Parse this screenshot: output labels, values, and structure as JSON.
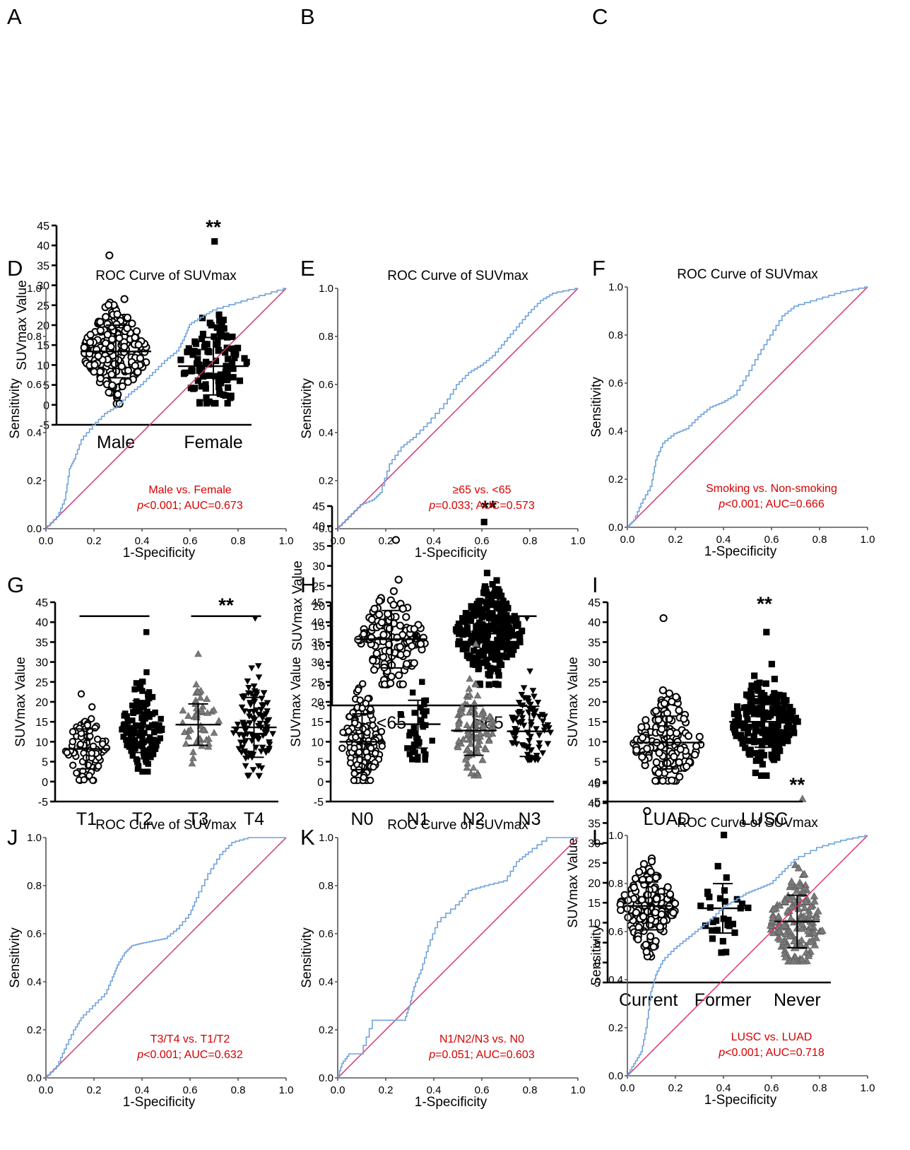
{
  "colors": {
    "roc_curve": "#6fa3dc",
    "reference_line": "#d6336c",
    "annotation": "#d50000",
    "open_points": "#000000",
    "square_points": "#000000",
    "triangle_points": "#7a7a7a"
  },
  "chart_data": [
    {
      "panel": "A",
      "type": "scatter",
      "ylabel": "SUVmax Value",
      "ylim": [
        -5,
        45
      ],
      "yticks": [
        "45",
        "40",
        "35",
        "30",
        "25",
        "20",
        "15",
        "10",
        "5",
        "0",
        "-5"
      ],
      "groups": [
        {
          "name": "Male",
          "marker": "circle-open",
          "mean": 13.4,
          "sd": 6.6,
          "n": 200,
          "min": 0.3,
          "max": 37.5
        },
        {
          "name": "Female",
          "marker": "square",
          "mean": 9.7,
          "sd": 7.2,
          "n": 110,
          "min": 0.4,
          "max": 41
        }
      ],
      "significance": [
        {
          "label": "**",
          "group": 1
        }
      ]
    },
    {
      "panel": "B",
      "type": "scatter",
      "ylabel": "SUVmax Value",
      "ylim": [
        -5,
        45
      ],
      "yticks": [
        "45",
        "40",
        "35",
        "30",
        "25",
        "20",
        "15",
        "10",
        "5",
        "0",
        "-5"
      ],
      "groups": [
        {
          "name": "<65",
          "marker": "circle-open",
          "mean": 11.6,
          "sd": 7.2,
          "n": 130,
          "min": 0.3,
          "max": 36.5
        },
        {
          "name": "≥65",
          "marker": "square",
          "mean": 13.0,
          "sd": 6.6,
          "n": 240,
          "min": 0.2,
          "max": 41
        }
      ],
      "significance": [
        {
          "label": "**",
          "group": 1
        }
      ]
    },
    {
      "panel": "C",
      "type": "scatter",
      "ylabel": "SUVmax Value",
      "ylim": [
        -5,
        45
      ],
      "yticks": [
        "45",
        "40",
        "35",
        "30",
        "25",
        "20",
        "15",
        "10",
        "5",
        "0",
        "-5"
      ],
      "groups": [
        {
          "name": "Current",
          "marker": "circle-open",
          "mean": 14.2,
          "sd": 6.0,
          "n": 170,
          "min": 1.5,
          "max": 38
        },
        {
          "name": "Former",
          "marker": "square",
          "mean": 13.6,
          "sd": 6.2,
          "n": 30,
          "min": 2.5,
          "max": 32
        },
        {
          "name": "Never",
          "marker": "triangle",
          "mean": 10.3,
          "sd": 6.6,
          "n": 150,
          "min": 0.3,
          "max": 41
        }
      ],
      "significance": [
        {
          "label": "**",
          "group": 2
        }
      ]
    },
    {
      "panel": "D",
      "type": "line",
      "title": "ROC Curve of SUVmax",
      "xlabel": "1-Specificity",
      "ylabel": "Sensitivity",
      "xlim": [
        0,
        1
      ],
      "ylim": [
        0,
        1
      ],
      "xticks": [
        "0.0",
        "0.2",
        "0.4",
        "0.6",
        "0.8",
        "1.0"
      ],
      "yticks": [
        "0.0",
        "0.2",
        "0.4",
        "0.6",
        "0.8",
        "1.0"
      ],
      "curve": [
        [
          0,
          0
        ],
        [
          0.05,
          0.05
        ],
        [
          0.08,
          0.12
        ],
        [
          0.1,
          0.25
        ],
        [
          0.12,
          0.29
        ],
        [
          0.15,
          0.37
        ],
        [
          0.2,
          0.43
        ],
        [
          0.25,
          0.48
        ],
        [
          0.3,
          0.51
        ],
        [
          0.35,
          0.56
        ],
        [
          0.4,
          0.6
        ],
        [
          0.45,
          0.65
        ],
        [
          0.5,
          0.7
        ],
        [
          0.55,
          0.74
        ],
        [
          0.58,
          0.8
        ],
        [
          0.6,
          0.85
        ],
        [
          0.65,
          0.88
        ],
        [
          0.7,
          0.91
        ],
        [
          0.8,
          0.94
        ],
        [
          0.9,
          0.97
        ],
        [
          1,
          1
        ]
      ],
      "reference": [
        [
          0,
          0
        ],
        [
          1,
          1
        ]
      ],
      "annotation": [
        "Male vs. Female",
        "p<0.001; AUC=0.673"
      ]
    },
    {
      "panel": "E",
      "type": "line",
      "title": "ROC Curve of SUVmax",
      "xlabel": "1-Specificity",
      "ylabel": "Sensitivity",
      "xlim": [
        0,
        1
      ],
      "ylim": [
        0,
        1
      ],
      "xticks": [
        "0.0",
        "0.2",
        "0.4",
        "0.6",
        "0.8",
        "1.0"
      ],
      "yticks": [
        "0.0",
        "0.2",
        "0.4",
        "0.6",
        "0.8",
        "1.0"
      ],
      "curve": [
        [
          0,
          0
        ],
        [
          0.05,
          0.05
        ],
        [
          0.1,
          0.1
        ],
        [
          0.15,
          0.12
        ],
        [
          0.18,
          0.15
        ],
        [
          0.22,
          0.27
        ],
        [
          0.27,
          0.34
        ],
        [
          0.32,
          0.38
        ],
        [
          0.38,
          0.44
        ],
        [
          0.45,
          0.52
        ],
        [
          0.5,
          0.6
        ],
        [
          0.55,
          0.65
        ],
        [
          0.6,
          0.68
        ],
        [
          0.65,
          0.72
        ],
        [
          0.7,
          0.78
        ],
        [
          0.75,
          0.84
        ],
        [
          0.8,
          0.9
        ],
        [
          0.85,
          0.95
        ],
        [
          0.9,
          0.98
        ],
        [
          1,
          1
        ]
      ],
      "reference": [
        [
          0,
          0
        ],
        [
          1,
          1
        ]
      ],
      "annotation": [
        "≥65 vs. <65",
        "p=0.033; AUC=0.573"
      ]
    },
    {
      "panel": "F",
      "type": "line",
      "title": "ROC Curve of SUVmax",
      "xlabel": "1-Specificity",
      "ylabel": "Sensitivity",
      "xlim": [
        0,
        1
      ],
      "ylim": [
        0,
        1
      ],
      "xticks": [
        "0.0",
        "0.2",
        "0.4",
        "0.6",
        "0.8",
        "1.0"
      ],
      "yticks": [
        "0.0",
        "0.2",
        "0.4",
        "0.6",
        "0.8",
        "1.0"
      ],
      "curve": [
        [
          0,
          0
        ],
        [
          0.03,
          0.03
        ],
        [
          0.06,
          0.1
        ],
        [
          0.1,
          0.17
        ],
        [
          0.12,
          0.28
        ],
        [
          0.15,
          0.35
        ],
        [
          0.2,
          0.39
        ],
        [
          0.25,
          0.41
        ],
        [
          0.3,
          0.46
        ],
        [
          0.35,
          0.5
        ],
        [
          0.4,
          0.52
        ],
        [
          0.45,
          0.55
        ],
        [
          0.5,
          0.63
        ],
        [
          0.55,
          0.72
        ],
        [
          0.6,
          0.8
        ],
        [
          0.65,
          0.88
        ],
        [
          0.7,
          0.92
        ],
        [
          0.8,
          0.95
        ],
        [
          0.9,
          0.98
        ],
        [
          1,
          1
        ]
      ],
      "reference": [
        [
          0,
          0
        ],
        [
          1,
          1
        ]
      ],
      "annotation": [
        "Smoking vs. Non-smoking",
        "p<0.001; AUC=0.666"
      ]
    },
    {
      "panel": "G",
      "type": "scatter",
      "ylabel": "SUVmax Value",
      "ylim": [
        -5,
        45
      ],
      "yticks": [
        "45",
        "40",
        "35",
        "30",
        "25",
        "20",
        "15",
        "10",
        "5",
        "0",
        "-5"
      ],
      "groups": [
        {
          "name": "T1",
          "marker": "circle-open",
          "mean": 8.2,
          "sd": 5.0,
          "n": 80,
          "min": 0.3,
          "max": 22
        },
        {
          "name": "T2",
          "marker": "square",
          "mean": 13.8,
          "sd": 6.5,
          "n": 140,
          "min": 2.5,
          "max": 37.5
        },
        {
          "name": "T3",
          "marker": "triangle",
          "mean": 14.3,
          "sd": 5.2,
          "n": 50,
          "min": 4.5,
          "max": 32
        },
        {
          "name": "T4",
          "marker": "triangle-down",
          "mean": 13.6,
          "sd": 7.5,
          "n": 110,
          "min": 1.5,
          "max": 41
        }
      ],
      "significance": [
        {
          "label": "**",
          "group": 3
        }
      ]
    },
    {
      "panel": "H",
      "type": "scatter",
      "ylabel": "SUVmax Value",
      "ylim": [
        -5,
        45
      ],
      "yticks": [
        "45",
        "40",
        "35",
        "30",
        "25",
        "20",
        "15",
        "10",
        "5",
        "0",
        "-5"
      ],
      "groups": [
        {
          "name": "N0",
          "marker": "circle-open",
          "mean": 10.0,
          "sd": 7.0,
          "n": 140,
          "min": 0.3,
          "max": 37
        },
        {
          "name": "N1",
          "marker": "square",
          "mean": 14.4,
          "sd": 6.0,
          "n": 40,
          "min": 5.5,
          "max": 36.5
        },
        {
          "name": "N2",
          "marker": "triangle",
          "mean": 12.8,
          "sd": 6.2,
          "n": 100,
          "min": 1.5,
          "max": 34.5
        },
        {
          "name": "N3",
          "marker": "triangle-down",
          "mean": 12.6,
          "sd": 6.3,
          "n": 80,
          "min": 5.5,
          "max": 41
        }
      ],
      "significance": [
        {
          "label": "**",
          "group": 3
        }
      ]
    },
    {
      "panel": "I",
      "type": "scatter",
      "ylabel": "SUVmax Value",
      "ylim": [
        -5,
        45
      ],
      "yticks": [
        "45",
        "40",
        "35",
        "30",
        "25",
        "20",
        "15",
        "10",
        "5",
        "0",
        "-5"
      ],
      "groups": [
        {
          "name": "LUAD",
          "marker": "circle-open",
          "mean": 9.8,
          "sd": 6.6,
          "n": 150,
          "min": 0.2,
          "max": 41
        },
        {
          "name": "LUSC",
          "marker": "square",
          "mean": 15.0,
          "sd": 6.4,
          "n": 200,
          "min": 1.5,
          "max": 37.5
        }
      ],
      "significance": [
        {
          "label": "**",
          "group": 1
        }
      ]
    },
    {
      "panel": "J",
      "type": "line",
      "title": "ROC Curve of SUVmax",
      "xlabel": "1-Specificity",
      "ylabel": "Sensitivity",
      "xlim": [
        0,
        1
      ],
      "ylim": [
        0,
        1
      ],
      "xticks": [
        "0.0",
        "0.2",
        "0.4",
        "0.6",
        "0.8",
        "1.0"
      ],
      "yticks": [
        "0.0",
        "0.2",
        "0.4",
        "0.6",
        "0.8",
        "1.0"
      ],
      "curve": [
        [
          0,
          0
        ],
        [
          0.05,
          0.05
        ],
        [
          0.08,
          0.12
        ],
        [
          0.12,
          0.2
        ],
        [
          0.15,
          0.25
        ],
        [
          0.2,
          0.3
        ],
        [
          0.25,
          0.35
        ],
        [
          0.28,
          0.42
        ],
        [
          0.3,
          0.47
        ],
        [
          0.33,
          0.52
        ],
        [
          0.36,
          0.55
        ],
        [
          0.4,
          0.56
        ],
        [
          0.45,
          0.57
        ],
        [
          0.5,
          0.58
        ],
        [
          0.55,
          0.62
        ],
        [
          0.6,
          0.68
        ],
        [
          0.63,
          0.75
        ],
        [
          0.68,
          0.85
        ],
        [
          0.73,
          0.93
        ],
        [
          0.78,
          0.98
        ],
        [
          0.85,
          1
        ],
        [
          1,
          1
        ]
      ],
      "reference": [
        [
          0,
          0
        ],
        [
          1,
          1
        ]
      ],
      "annotation": [
        "T3/T4 vs. T1/T2",
        "p<0.001; AUC=0.632"
      ]
    },
    {
      "panel": "K",
      "type": "line",
      "title": "ROC Curve of SUVmax",
      "xlabel": "1-Specificity",
      "ylabel": "Sensitivity",
      "xlim": [
        0,
        1
      ],
      "ylim": [
        0,
        1
      ],
      "xticks": [
        "0.0",
        "0.2",
        "0.4",
        "0.6",
        "0.8",
        "1.0"
      ],
      "yticks": [
        "0.0",
        "0.2",
        "0.4",
        "0.6",
        "0.8",
        "1.0"
      ],
      "curve": [
        [
          0,
          0
        ],
        [
          0.02,
          0.06
        ],
        [
          0.05,
          0.1
        ],
        [
          0.1,
          0.1
        ],
        [
          0.15,
          0.24
        ],
        [
          0.28,
          0.24
        ],
        [
          0.3,
          0.3
        ],
        [
          0.32,
          0.38
        ],
        [
          0.35,
          0.45
        ],
        [
          0.38,
          0.55
        ],
        [
          0.42,
          0.65
        ],
        [
          0.5,
          0.72
        ],
        [
          0.55,
          0.78
        ],
        [
          0.62,
          0.8
        ],
        [
          0.7,
          0.82
        ],
        [
          0.75,
          0.9
        ],
        [
          0.8,
          0.94
        ],
        [
          0.88,
          1
        ],
        [
          1,
          1
        ]
      ],
      "reference": [
        [
          0,
          0
        ],
        [
          1,
          1
        ]
      ],
      "annotation": [
        "N1/N2/N3 vs. N0",
        "p=0.051; AUC=0.603"
      ]
    },
    {
      "panel": "L",
      "type": "line",
      "title": "ROC Curve of SUVmax",
      "xlabel": "1-Specificity",
      "ylabel": "Sensitivity",
      "xlim": [
        0,
        1
      ],
      "ylim": [
        0,
        1
      ],
      "xticks": [
        "0.0",
        "0.2",
        "0.4",
        "0.6",
        "0.8",
        "1.0"
      ],
      "yticks": [
        "0.0",
        "0.2",
        "0.4",
        "0.6",
        "0.8",
        "1.0"
      ],
      "curve": [
        [
          0,
          0
        ],
        [
          0.03,
          0.05
        ],
        [
          0.06,
          0.1
        ],
        [
          0.08,
          0.2
        ],
        [
          0.1,
          0.35
        ],
        [
          0.12,
          0.42
        ],
        [
          0.15,
          0.48
        ],
        [
          0.2,
          0.53
        ],
        [
          0.25,
          0.57
        ],
        [
          0.3,
          0.61
        ],
        [
          0.35,
          0.65
        ],
        [
          0.4,
          0.7
        ],
        [
          0.45,
          0.73
        ],
        [
          0.5,
          0.76
        ],
        [
          0.55,
          0.78
        ],
        [
          0.6,
          0.8
        ],
        [
          0.65,
          0.85
        ],
        [
          0.7,
          0.9
        ],
        [
          0.8,
          0.95
        ],
        [
          0.9,
          0.98
        ],
        [
          1,
          1
        ]
      ],
      "reference": [
        [
          0,
          0
        ],
        [
          1,
          1
        ]
      ],
      "annotation": [
        "LUSC vs. LUAD",
        "p<0.001; AUC=0.718"
      ]
    }
  ]
}
